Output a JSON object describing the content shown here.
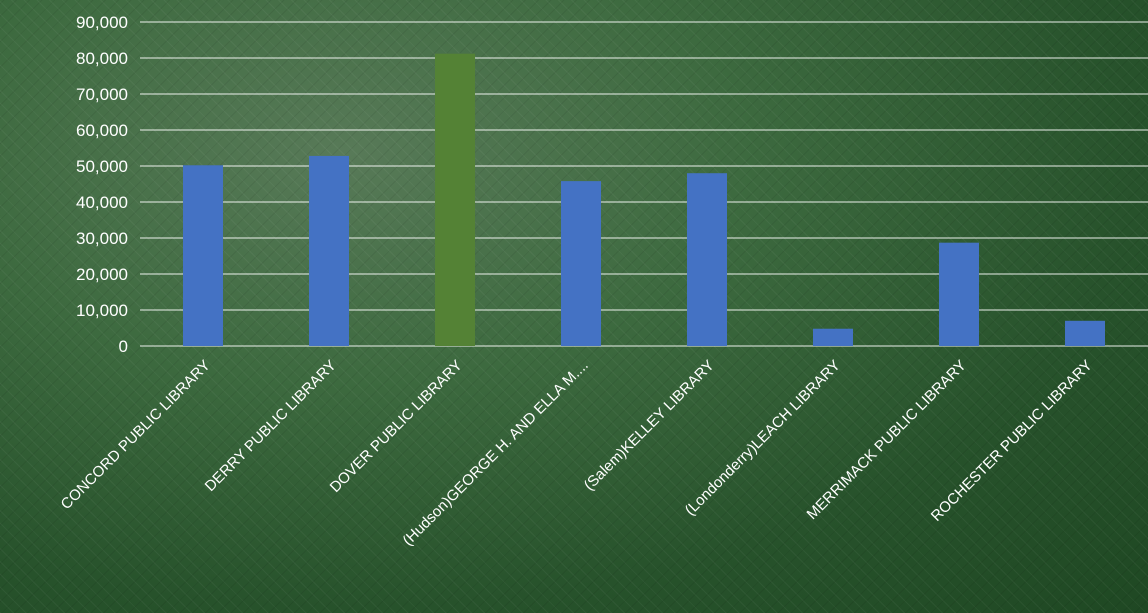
{
  "chart_data": {
    "type": "bar",
    "title": "",
    "xlabel": "",
    "ylabel": "",
    "ylim": [
      0,
      90000
    ],
    "yticks": [
      0,
      10000,
      20000,
      30000,
      40000,
      50000,
      60000,
      70000,
      80000,
      90000
    ],
    "ytick_labels": [
      "0",
      "10,000",
      "20,000",
      "30,000",
      "40,000",
      "50,000",
      "60,000",
      "70,000",
      "80,000",
      "90,000"
    ],
    "grid": true,
    "categories": [
      "CONCORD PUBLIC LIBRARY",
      "DERRY PUBLIC LIBRARY",
      "DOVER PUBLIC LIBRARY",
      "(Hudson)GEORGE H. AND ELLA M....",
      "(Salem)KELLEY LIBRARY",
      "(Londonderry)LEACH LIBRARY",
      "MERRIMACK PUBLIC LIBRARY",
      "ROCHESTER PUBLIC LIBRARY"
    ],
    "values": [
      50200,
      52800,
      81200,
      45800,
      48000,
      4800,
      28700,
      7000
    ],
    "highlight_index": 2,
    "colors": {
      "bar": "#4472c4",
      "highlight": "#548235",
      "grid": "#ffffff",
      "text": "#ffffff"
    }
  }
}
